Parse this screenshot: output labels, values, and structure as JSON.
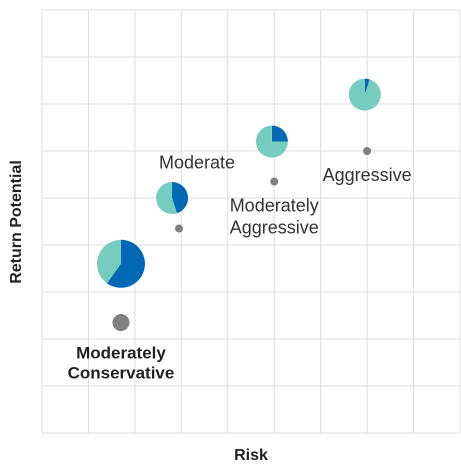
{
  "chart_data": {
    "type": "scatter",
    "title": "",
    "xlabel": "Risk",
    "ylabel": "Return Potential",
    "xlim": [
      0,
      9
    ],
    "ylim": [
      0,
      9
    ],
    "grid": true,
    "series": [
      {
        "points": [
          {
            "label": [
              "Moderately",
              "Conservative"
            ],
            "x": 1.7,
            "y": 2.35,
            "emphasized": true,
            "marker_size": "medium"
          },
          {
            "label": [
              "Moderate"
            ],
            "x": 2.95,
            "y": 4.35,
            "emphasized": false,
            "marker_size": "small"
          },
          {
            "label": [
              "Moderately",
              "Aggressive"
            ],
            "x": 5.0,
            "y": 5.35,
            "emphasized": false,
            "marker_size": "small"
          },
          {
            "label": [
              "Aggressive"
            ],
            "x": 7.0,
            "y": 6.0,
            "emphasized": false,
            "marker_size": "small"
          }
        ]
      }
    ],
    "pies": [
      {
        "x": 1.7,
        "y": 3.6,
        "size": "large",
        "slices": [
          {
            "share": 0.6,
            "color": "#0068B5"
          },
          {
            "share": 0.4,
            "color": "#77CCC0"
          }
        ]
      },
      {
        "x": 2.8,
        "y": 5.0,
        "size": "small",
        "slices": [
          {
            "share": 0.45,
            "color": "#0068B5"
          },
          {
            "share": 0.55,
            "color": "#77CCC0"
          }
        ]
      },
      {
        "x": 4.95,
        "y": 6.2,
        "size": "small",
        "slices": [
          {
            "share": 0.25,
            "color": "#0068B5"
          },
          {
            "share": 0.75,
            "color": "#77CCC0"
          }
        ]
      },
      {
        "x": 6.95,
        "y": 7.2,
        "size": "small",
        "slices": [
          {
            "share": 0.05,
            "color": "#0068B5"
          },
          {
            "share": 0.95,
            "color": "#77CCC0"
          }
        ]
      }
    ],
    "colors": {
      "grid": "#dcdcdc",
      "marker": "#808080",
      "blue": "#0068B5",
      "teal": "#77CCC0"
    }
  }
}
